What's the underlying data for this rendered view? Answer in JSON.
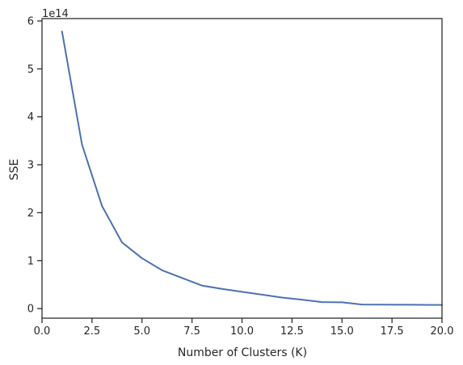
{
  "chart_data": {
    "type": "line",
    "title": "",
    "xlabel": "Number of Clusters (K)",
    "ylabel": "SSE",
    "y_offset_text": "1e14",
    "y_scale_factor": 100000000000000.0,
    "xlim": [
      0,
      20
    ],
    "ylim": [
      -0.2,
      6.05
    ],
    "x_ticks": [
      0.0,
      2.5,
      5.0,
      7.5,
      10.0,
      12.5,
      15.0,
      17.5,
      20.0
    ],
    "x_tick_labels": [
      "0.0",
      "2.5",
      "5.0",
      "7.5",
      "10.0",
      "12.5",
      "15.0",
      "17.5",
      "20.0"
    ],
    "y_ticks": [
      0,
      1,
      2,
      3,
      4,
      5,
      6
    ],
    "y_tick_labels": [
      "0",
      "1",
      "2",
      "3",
      "4",
      "5",
      "6"
    ],
    "grid": false,
    "series": [
      {
        "color": "#4c72b0",
        "x": [
          1,
          2,
          3,
          4,
          5,
          6,
          7,
          8,
          9,
          10,
          11,
          12,
          13,
          14,
          15,
          16,
          17,
          18,
          19,
          20
        ],
        "y": [
          5.78,
          3.42,
          2.14,
          1.38,
          1.05,
          0.8,
          0.64,
          0.48,
          0.41,
          0.35,
          0.29,
          0.23,
          0.185,
          0.135,
          0.13,
          0.085,
          0.082,
          0.08,
          0.078,
          0.076
        ]
      }
    ]
  }
}
